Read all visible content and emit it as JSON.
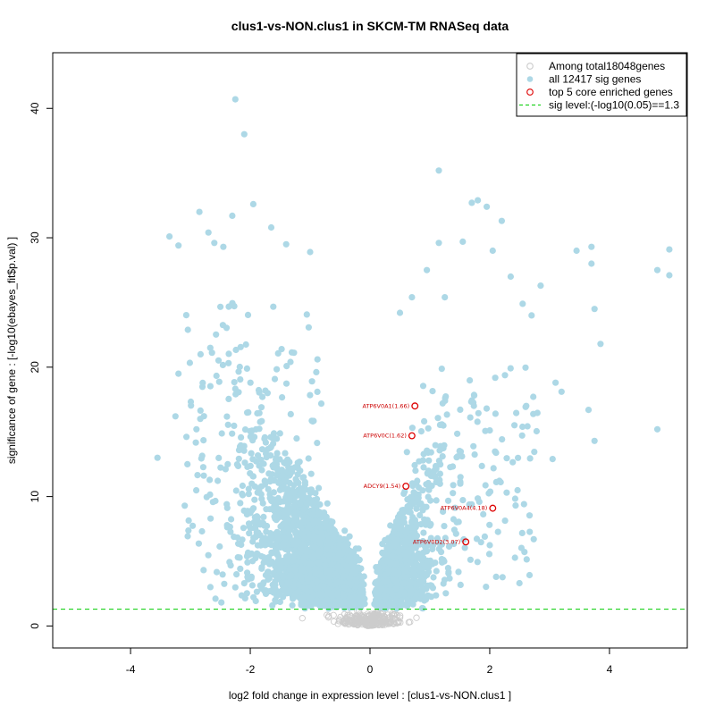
{
  "chart_data": {
    "type": "scatter",
    "title": "clus1-vs-NON.clus1 in SKCM-TM RNASeq data",
    "xlabel": "log2 fold change in expression level : [clus1-vs-NON.clus1 ]",
    "ylabel": "significance of gene : [-log10(ebayes_fit$p.val) ]",
    "xlim": [
      -5.3,
      5.3
    ],
    "ylim": [
      -1.7,
      44.3
    ],
    "xticks": [
      -4,
      -2,
      0,
      2,
      4
    ],
    "yticks": [
      0,
      10,
      20,
      30,
      40
    ],
    "grid": false,
    "legend_position": "top-right",
    "legend": [
      {
        "label": "Among total18048genes",
        "marker": "open-circle",
        "color": "#cccccc"
      },
      {
        "label": "all 12417 sig genes",
        "marker": "filled-circle",
        "color": "#add8e6"
      },
      {
        "label": "top 5 core enriched genes",
        "marker": "open-circle",
        "color": "#dd0000"
      },
      {
        "label": "sig level:(-log10(0.05)==1.3",
        "marker": "dashed-line",
        "color": "#00cc00"
      }
    ],
    "sig_level": 1.3,
    "colors": {
      "background_points": "#cccccc",
      "sig_points": "#add8e6",
      "top_genes": "#dd0000",
      "sig_line": "#00cc00"
    },
    "sig_points_highlighted": [
      {
        "x": -2.25,
        "y": 40.7
      },
      {
        "x": -2.1,
        "y": 38.0
      },
      {
        "x": -1.95,
        "y": 32.6
      },
      {
        "x": -2.3,
        "y": 31.7
      },
      {
        "x": -2.85,
        "y": 32.0
      },
      {
        "x": -3.35,
        "y": 30.1
      },
      {
        "x": -3.2,
        "y": 29.4
      },
      {
        "x": -2.7,
        "y": 30.4
      },
      {
        "x": -2.6,
        "y": 29.6
      },
      {
        "x": -2.45,
        "y": 29.3
      },
      {
        "x": -1.65,
        "y": 30.8
      },
      {
        "x": -1.4,
        "y": 29.5
      },
      {
        "x": -1.0,
        "y": 28.9
      },
      {
        "x": -3.55,
        "y": 13.0
      },
      {
        "x": -3.25,
        "y": 16.2
      },
      {
        "x": -3.2,
        "y": 19.5
      },
      {
        "x": -3.05,
        "y": 12.5
      },
      {
        "x": -2.9,
        "y": 15.2
      },
      {
        "x": 1.15,
        "y": 35.2
      },
      {
        "x": 1.7,
        "y": 32.7
      },
      {
        "x": 1.8,
        "y": 32.9
      },
      {
        "x": 1.95,
        "y": 32.4
      },
      {
        "x": 2.2,
        "y": 31.3
      },
      {
        "x": 1.15,
        "y": 29.6
      },
      {
        "x": 1.55,
        "y": 29.7
      },
      {
        "x": 2.05,
        "y": 29.0
      },
      {
        "x": 2.35,
        "y": 27.0
      },
      {
        "x": 2.85,
        "y": 26.3
      },
      {
        "x": 2.55,
        "y": 24.9
      },
      {
        "x": 2.7,
        "y": 24.0
      },
      {
        "x": 3.45,
        "y": 29.0
      },
      {
        "x": 3.7,
        "y": 29.3
      },
      {
        "x": 3.7,
        "y": 28.0
      },
      {
        "x": 3.75,
        "y": 24.5
      },
      {
        "x": 3.85,
        "y": 21.8
      },
      {
        "x": 4.8,
        "y": 27.5
      },
      {
        "x": 5.0,
        "y": 29.1
      },
      {
        "x": 5.0,
        "y": 27.1
      },
      {
        "x": 3.1,
        "y": 18.8
      },
      {
        "x": 3.2,
        "y": 18.1
      },
      {
        "x": 3.65,
        "y": 16.7
      },
      {
        "x": 3.75,
        "y": 14.3
      },
      {
        "x": 4.8,
        "y": 15.2
      },
      {
        "x": 3.05,
        "y": 12.9
      },
      {
        "x": 0.95,
        "y": 27.5
      },
      {
        "x": 1.25,
        "y": 25.4
      },
      {
        "x": 0.7,
        "y": 25.4
      },
      {
        "x": 0.5,
        "y": 24.2
      }
    ],
    "top_genes": [
      {
        "label": "ATP6V0A1(1.66)",
        "x": 0.75,
        "y": 17.0
      },
      {
        "label": "ATP6V0C(1.62)",
        "x": 0.7,
        "y": 14.7
      },
      {
        "label": "ADCY9(1.54)",
        "x": 0.6,
        "y": 10.8
      },
      {
        "label": "ATP6V0A4(4.18)",
        "x": 2.05,
        "y": 9.1
      },
      {
        "label": "ATP6V0D2(3.07)",
        "x": 1.6,
        "y": 6.5
      }
    ]
  }
}
